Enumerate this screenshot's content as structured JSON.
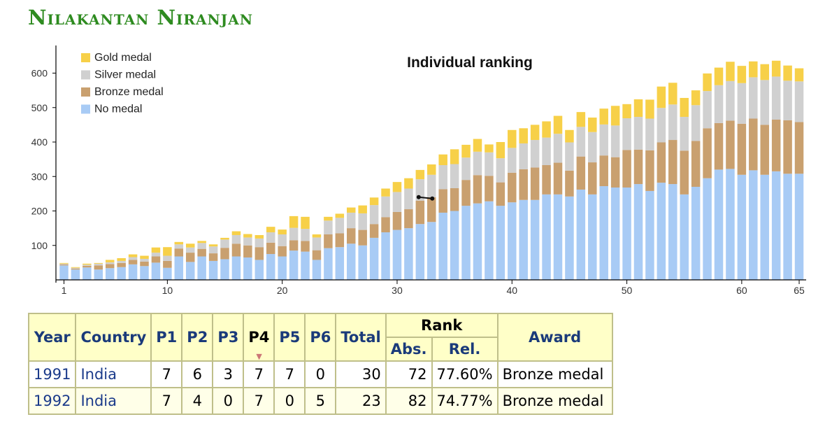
{
  "page": {
    "title": "Nilakantan Niranjan"
  },
  "chart_data": {
    "type": "bar",
    "stacked": true,
    "title": "Individual ranking",
    "xlabel": "",
    "ylabel": "",
    "x_ticks": [
      1,
      10,
      20,
      30,
      40,
      50,
      60,
      65
    ],
    "y_ticks": [
      100,
      200,
      300,
      400,
      500,
      600
    ],
    "ylim": [
      0,
      640
    ],
    "legend": "top-left",
    "categories": [
      1,
      2,
      3,
      4,
      5,
      6,
      7,
      8,
      9,
      10,
      11,
      12,
      13,
      14,
      15,
      16,
      17,
      18,
      19,
      20,
      21,
      22,
      23,
      24,
      25,
      26,
      27,
      28,
      29,
      30,
      31,
      32,
      33,
      34,
      35,
      36,
      37,
      38,
      39,
      40,
      41,
      42,
      43,
      44,
      45,
      46,
      47,
      48,
      49,
      50,
      51,
      52,
      53,
      54,
      55,
      56,
      57,
      58,
      59,
      60,
      61,
      62,
      63,
      64,
      65
    ],
    "series": [
      {
        "name": "No medal",
        "color": "#a8cbf5",
        "values": [
          42,
          30,
          36,
          30,
          34,
          37,
          45,
          40,
          50,
          35,
          68,
          52,
          68,
          55,
          60,
          68,
          65,
          58,
          75,
          68,
          85,
          82,
          58,
          92,
          95,
          105,
          100,
          122,
          138,
          145,
          150,
          162,
          168,
          195,
          200,
          215,
          222,
          228,
          215,
          225,
          232,
          232,
          248,
          248,
          242,
          262,
          248,
          272,
          268,
          268,
          278,
          258,
          282,
          278,
          248,
          270,
          295,
          320,
          322,
          305,
          318,
          305,
          315,
          308,
          308
        ]
      },
      {
        "name": "Bronze medal",
        "color": "#c9a06f",
        "values": [
          3,
          3,
          5,
          12,
          12,
          12,
          13,
          13,
          18,
          20,
          23,
          27,
          22,
          22,
          33,
          37,
          35,
          37,
          33,
          30,
          30,
          31,
          28,
          40,
          40,
          45,
          45,
          40,
          44,
          52,
          55,
          68,
          72,
          68,
          66,
          75,
          82,
          74,
          68,
          86,
          89,
          94,
          85,
          92,
          75,
          96,
          93,
          89,
          88,
          109,
          100,
          118,
          117,
          128,
          127,
          133,
          145,
          135,
          140,
          148,
          150,
          145,
          150,
          155,
          150
        ]
      },
      {
        "name": "Silver medal",
        "color": "#d0d0d0",
        "values": [
          2,
          2,
          3,
          5,
          5,
          6,
          8,
          8,
          11,
          15,
          12,
          15,
          17,
          20,
          24,
          25,
          23,
          25,
          30,
          34,
          36,
          35,
          37,
          40,
          45,
          45,
          48,
          55,
          60,
          58,
          60,
          62,
          65,
          70,
          70,
          65,
          68,
          68,
          70,
          72,
          75,
          80,
          80,
          84,
          82,
          86,
          88,
          90,
          92,
          92,
          95,
          92,
          100,
          103,
          98,
          104,
          108,
          110,
          115,
          118,
          120,
          130,
          125,
          115,
          118
        ]
      },
      {
        "name": "Gold medal",
        "color": "#f7d048",
        "values": [
          2,
          2,
          3,
          2,
          7,
          8,
          8,
          9,
          15,
          25,
          7,
          11,
          6,
          6,
          5,
          11,
          10,
          10,
          16,
          14,
          34,
          35,
          9,
          11,
          12,
          15,
          23,
          22,
          23,
          29,
          30,
          27,
          30,
          31,
          43,
          37,
          37,
          23,
          47,
          52,
          44,
          44,
          47,
          52,
          36,
          43,
          42,
          46,
          57,
          41,
          51,
          55,
          62,
          63,
          55,
          43,
          51,
          51,
          56,
          50,
          46,
          46,
          46,
          44,
          38
        ]
      }
    ],
    "annotation": {
      "type": "rank-marker",
      "from_x": 32,
      "to_x": 33,
      "y": 240
    },
    "colors": {
      "axis": "#000000",
      "tick_text": "#333333"
    }
  },
  "table": {
    "headers": {
      "year": "Year",
      "country": "Country",
      "p1": "P1",
      "p2": "P2",
      "p3": "P3",
      "p4": "P4",
      "p5": "P5",
      "p6": "P6",
      "total": "Total",
      "rank": "Rank",
      "abs": "Abs.",
      "rel": "Rel.",
      "award": "Award"
    },
    "rows": [
      {
        "year": "1991",
        "country": "India",
        "p1": "7",
        "p2": "6",
        "p3": "3",
        "p4": "7",
        "p5": "7",
        "p6": "0",
        "total": "30",
        "abs": "72",
        "rel": "77.60%",
        "award": "Bronze medal"
      },
      {
        "year": "1992",
        "country": "India",
        "p1": "7",
        "p2": "4",
        "p3": "0",
        "p4": "7",
        "p5": "0",
        "p6": "5",
        "total": "23",
        "abs": "82",
        "rel": "74.77%",
        "award": "Bronze medal"
      }
    ],
    "colors": {
      "header_bg": "#ffffc8",
      "border": "#bfbf8a",
      "link": "#1a3a8a"
    }
  }
}
